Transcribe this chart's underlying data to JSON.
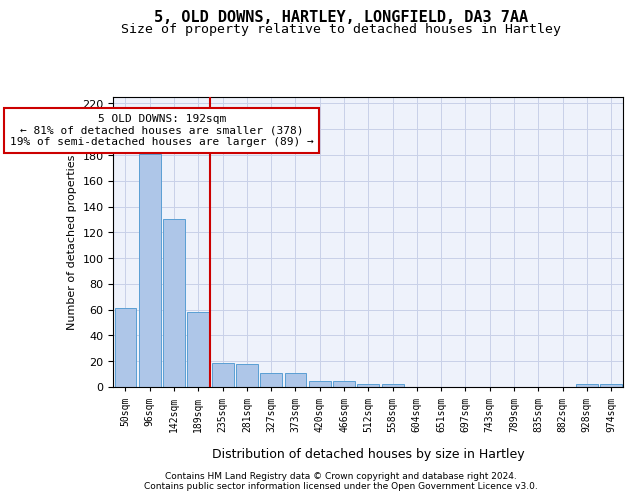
{
  "title1": "5, OLD DOWNS, HARTLEY, LONGFIELD, DA3 7AA",
  "title2": "Size of property relative to detached houses in Hartley",
  "xlabel": "Distribution of detached houses by size in Hartley",
  "ylabel": "Number of detached properties",
  "categories": [
    "50sqm",
    "96sqm",
    "142sqm",
    "189sqm",
    "235sqm",
    "281sqm",
    "327sqm",
    "373sqm",
    "420sqm",
    "466sqm",
    "512sqm",
    "558sqm",
    "604sqm",
    "651sqm",
    "697sqm",
    "743sqm",
    "789sqm",
    "835sqm",
    "882sqm",
    "928sqm",
    "974sqm"
  ],
  "values": [
    61,
    181,
    130,
    58,
    19,
    18,
    11,
    11,
    5,
    5,
    2,
    2,
    0,
    0,
    0,
    0,
    0,
    0,
    0,
    2,
    2
  ],
  "bar_color": "#aec6e8",
  "bar_edge_color": "#5a9fd4",
  "annotation_text": "5 OLD DOWNS: 192sqm\n← 81% of detached houses are smaller (378)\n19% of semi-detached houses are larger (89) →",
  "ylim": [
    0,
    225
  ],
  "yticks": [
    0,
    20,
    40,
    60,
    80,
    100,
    120,
    140,
    160,
    180,
    200,
    220
  ],
  "footer1": "Contains HM Land Registry data © Crown copyright and database right 2024.",
  "footer2": "Contains public sector information licensed under the Open Government Licence v3.0.",
  "bg_color": "#eef2fb",
  "grid_color": "#c8d0e8",
  "title1_fontsize": 11,
  "title2_fontsize": 9.5,
  "red_line_x": 3.5
}
